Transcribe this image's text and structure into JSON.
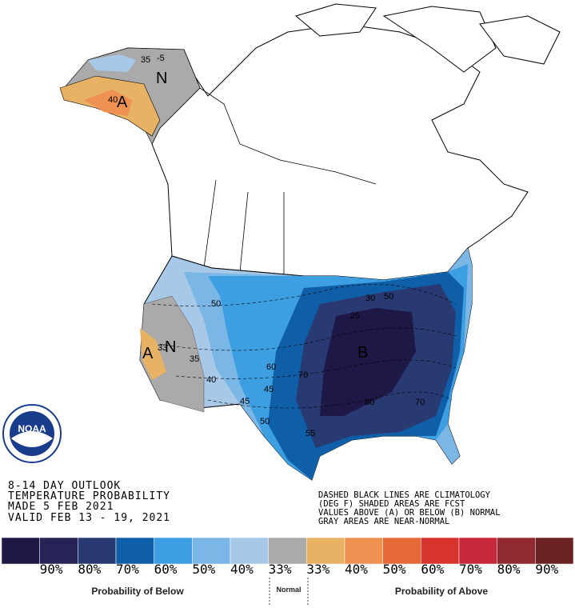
{
  "header": {
    "lines": [
      "8-14 DAY OUTLOOK",
      "TEMPERATURE PROBABILITY",
      "MADE  5 FEB 2021",
      "VALID  FEB 13 - 19, 2021"
    ]
  },
  "notes": {
    "lines": [
      "DASHED BLACK LINES ARE CLIMATOLOGY",
      "(DEG F) SHADED AREAS ARE FCST",
      "VALUES ABOVE (A) OR BELOW (B) NORMAL",
      "GRAY AREAS ARE NEAR-NORMAL"
    ]
  },
  "logo": {
    "text": "NOAA"
  },
  "map": {
    "labels": [
      "N",
      "A",
      "-5",
      "35",
      "40",
      "A",
      "N",
      "35",
      "33",
      "50",
      "40",
      "60",
      "45",
      "70",
      "45",
      "50",
      "55",
      "B",
      "80",
      "70",
      "25",
      "30",
      "50"
    ]
  },
  "legend": {
    "colors": [
      "#1e1846",
      "#262456",
      "#293a72",
      "#0f5fa8",
      "#3d9fe2",
      "#7ab6e6",
      "#a8c8e8",
      "#aaaaaa",
      "#e8b264",
      "#ef9150",
      "#e66a38",
      "#d8342e",
      "#c8283c",
      "#8e2a30",
      "#6a2222"
    ],
    "labels": [
      "90%",
      "80%",
      "70%",
      "60%",
      "50%",
      "40%",
      "33%",
      "33%",
      "40%",
      "50%",
      "60%",
      "70%",
      "80%",
      "90%"
    ],
    "below_title": "Probability of Below",
    "normal_title": "Normal",
    "above_title": "Probability of Above"
  }
}
